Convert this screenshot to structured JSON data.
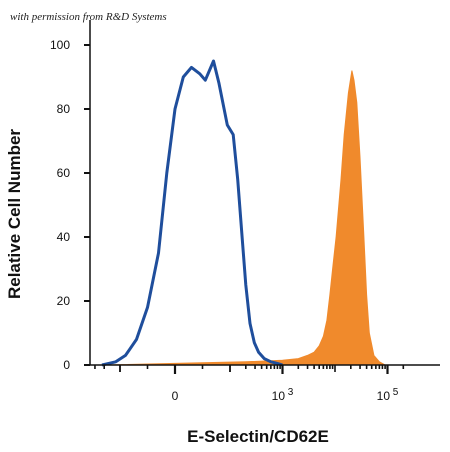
{
  "watermark": "with permission from R&D Systems",
  "chart_data": {
    "type": "area",
    "xlabel": "E-Selectin/CD62E",
    "ylabel": "Relative Cell Number",
    "x_scale": "biexponential",
    "x_ticks": [
      {
        "value": 0,
        "label": "0"
      },
      {
        "value": 1000,
        "label": "10",
        "exp": "3"
      },
      {
        "value": 100000,
        "label": "10",
        "exp": "5"
      }
    ],
    "y_ticks": [
      0,
      20,
      40,
      60,
      80,
      100
    ],
    "ylim": [
      0,
      100
    ],
    "grid": false,
    "legend": "none",
    "series": [
      {
        "style": "outline",
        "color": "#1f4e9c",
        "points": [
          [
            -220,
            0
          ],
          [
            -120,
            1
          ],
          [
            -90,
            3
          ],
          [
            -70,
            8
          ],
          [
            -50,
            18
          ],
          [
            -30,
            35
          ],
          [
            -15,
            60
          ],
          [
            0,
            80
          ],
          [
            15,
            90
          ],
          [
            30,
            93
          ],
          [
            45,
            91
          ],
          [
            55,
            89
          ],
          [
            70,
            95
          ],
          [
            80,
            88
          ],
          [
            95,
            75
          ],
          [
            115,
            72
          ],
          [
            140,
            58
          ],
          [
            170,
            40
          ],
          [
            200,
            25
          ],
          [
            240,
            13
          ],
          [
            290,
            7
          ],
          [
            350,
            4
          ],
          [
            450,
            2
          ],
          [
            600,
            1
          ],
          [
            800,
            0.5
          ],
          [
            1000,
            0
          ]
        ]
      },
      {
        "style": "filled",
        "color": "#f08a2c",
        "points": [
          [
            -200,
            0
          ],
          [
            0,
            0.5
          ],
          [
            200,
            1
          ],
          [
            1000,
            1.5
          ],
          [
            2000,
            2
          ],
          [
            3000,
            3
          ],
          [
            4000,
            4
          ],
          [
            5000,
            6
          ],
          [
            6000,
            9
          ],
          [
            7000,
            14
          ],
          [
            8000,
            22
          ],
          [
            9000,
            30
          ],
          [
            10500,
            40
          ],
          [
            13000,
            58
          ],
          [
            15000,
            72
          ],
          [
            18000,
            85
          ],
          [
            21000,
            92
          ],
          [
            23000,
            89
          ],
          [
            26000,
            82
          ],
          [
            30000,
            65
          ],
          [
            35000,
            42
          ],
          [
            40000,
            22
          ],
          [
            45000,
            10
          ],
          [
            55000,
            3
          ],
          [
            70000,
            1
          ],
          [
            90000,
            0
          ]
        ]
      }
    ]
  }
}
